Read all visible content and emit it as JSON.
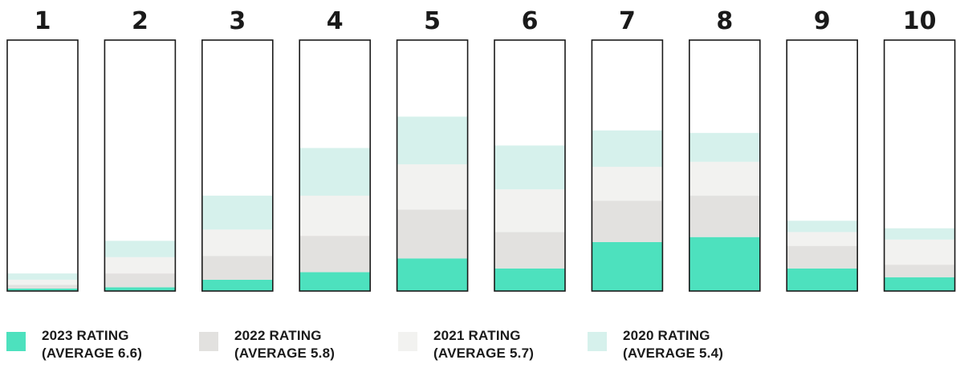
{
  "chart_data": {
    "type": "bar",
    "stacked": true,
    "title": "",
    "xlabel": "",
    "ylabel": "",
    "grid": false,
    "legend_placement": "bottom",
    "categories": [
      "1",
      "2",
      "3",
      "4",
      "5",
      "6",
      "7",
      "8",
      "9",
      "10"
    ],
    "series": [
      {
        "name": "2023 RATING",
        "color": "#4de1be",
        "values": [
          1,
          1.5,
          4.5,
          7.5,
          13,
          9,
          19.5,
          21.5,
          9,
          5.5
        ]
      },
      {
        "name": "2022 RATING",
        "color": "#e2e1df",
        "values": [
          1.5,
          5.5,
          9.5,
          14.5,
          19.5,
          14.5,
          16.5,
          16.5,
          9,
          5
        ]
      },
      {
        "name": "2021 RATING",
        "color": "#f2f2f0",
        "values": [
          2,
          6.5,
          10.5,
          16,
          18,
          17,
          13.5,
          13.5,
          5.5,
          10
        ]
      },
      {
        "name": "2020 RATING",
        "color": "#d6f1ec",
        "values": [
          2.5,
          6.5,
          13.5,
          19,
          19,
          17.5,
          14.5,
          11.5,
          4.5,
          4.5
        ]
      }
    ],
    "ylim": [
      0,
      100
    ]
  },
  "legend": [
    {
      "line1": "2023 RATING",
      "line2": "(AVERAGE 6.6)",
      "color": "#4de1be"
    },
    {
      "line1": "2022 RATING",
      "line2": "(AVERAGE 5.8)",
      "color": "#e2e1df"
    },
    {
      "line1": "2021 RATING",
      "line2": "(AVERAGE 5.7)",
      "color": "#f2f2f0"
    },
    {
      "line1": "2020 RATING",
      "line2": "(AVERAGE 5.4)",
      "color": "#d6f1ec"
    }
  ]
}
